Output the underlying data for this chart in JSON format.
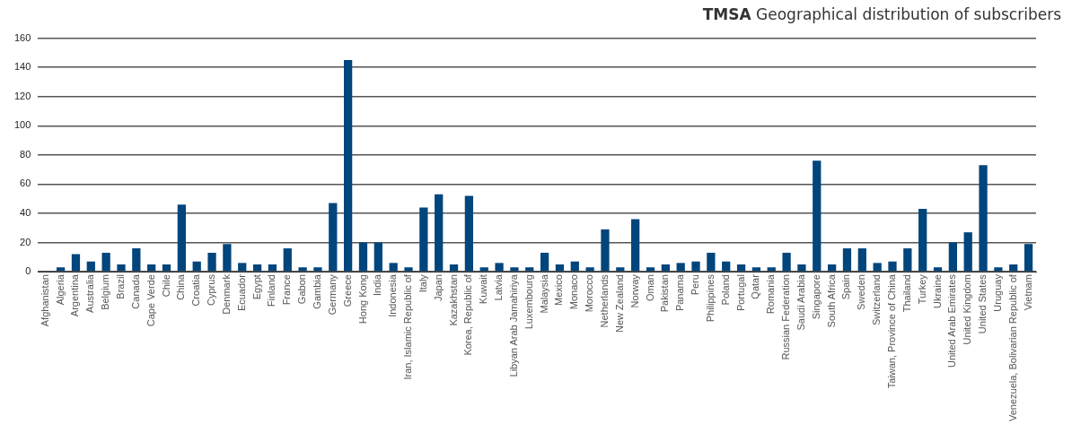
{
  "chart_data": {
    "type": "bar",
    "title": "TMSA Geographical distribution of subscribers",
    "categories": [
      "Afghanistan",
      "Algeria",
      "Argentina",
      "Australia",
      "Belgium",
      "Brazil",
      "Canada",
      "Cape Verde",
      "Chile",
      "China",
      "Croatia",
      "Cyprus",
      "Denmark",
      "Ecuador",
      "Egypt",
      "Finland",
      "France",
      "Gabon",
      "Gambia",
      "Germany",
      "Greece",
      "Hong Kong",
      "India",
      "Indonesia",
      "Iran, Islamic Republic of",
      "Italy",
      "Japan",
      "Kazakhstan",
      "Korea, Republic of",
      "Kuwait",
      "Latvia",
      "Libyan Arab Jamahiriya",
      "Luxembourg",
      "Malaysia",
      "Mexico",
      "Monaco",
      "Morocco",
      "Netherlands",
      "New Zealand",
      "Norway",
      "Oman",
      "Pakistan",
      "Panama",
      "Peru",
      "Philippines",
      "Poland",
      "Portugal",
      "Qatar",
      "Romania",
      "Russian Federation",
      "Saudi Arabia",
      "Singapore",
      "South Africa",
      "Spain",
      "Sweden",
      "Switzerland",
      "Taiwan, Province of China",
      "Thailand",
      "Turkey",
      "Ukraine",
      "United Arab Emirates",
      "United Kingdom",
      "United States",
      "Uruguay",
      "Venezuela, Bolivarian Republic of",
      "Vietnam"
    ],
    "values": [
      0,
      3,
      12,
      7,
      13,
      5,
      16,
      5,
      5,
      46,
      7,
      13,
      19,
      6,
      5,
      5,
      16,
      3,
      3,
      47,
      145,
      20,
      20,
      6,
      3,
      44,
      53,
      5,
      52,
      3,
      6,
      3,
      3,
      13,
      5,
      7,
      3,
      29,
      3,
      36,
      3,
      5,
      6,
      7,
      13,
      7,
      5,
      3,
      3,
      13,
      5,
      76,
      5,
      16,
      16,
      6,
      7,
      16,
      43,
      3,
      20,
      27,
      73,
      3,
      5,
      19
    ],
    "color": "#00457c",
    "ylim": [
      0,
      160
    ],
    "yticks": [
      0,
      20,
      40,
      60,
      80,
      100,
      120,
      140,
      160
    ],
    "grid": "y"
  }
}
